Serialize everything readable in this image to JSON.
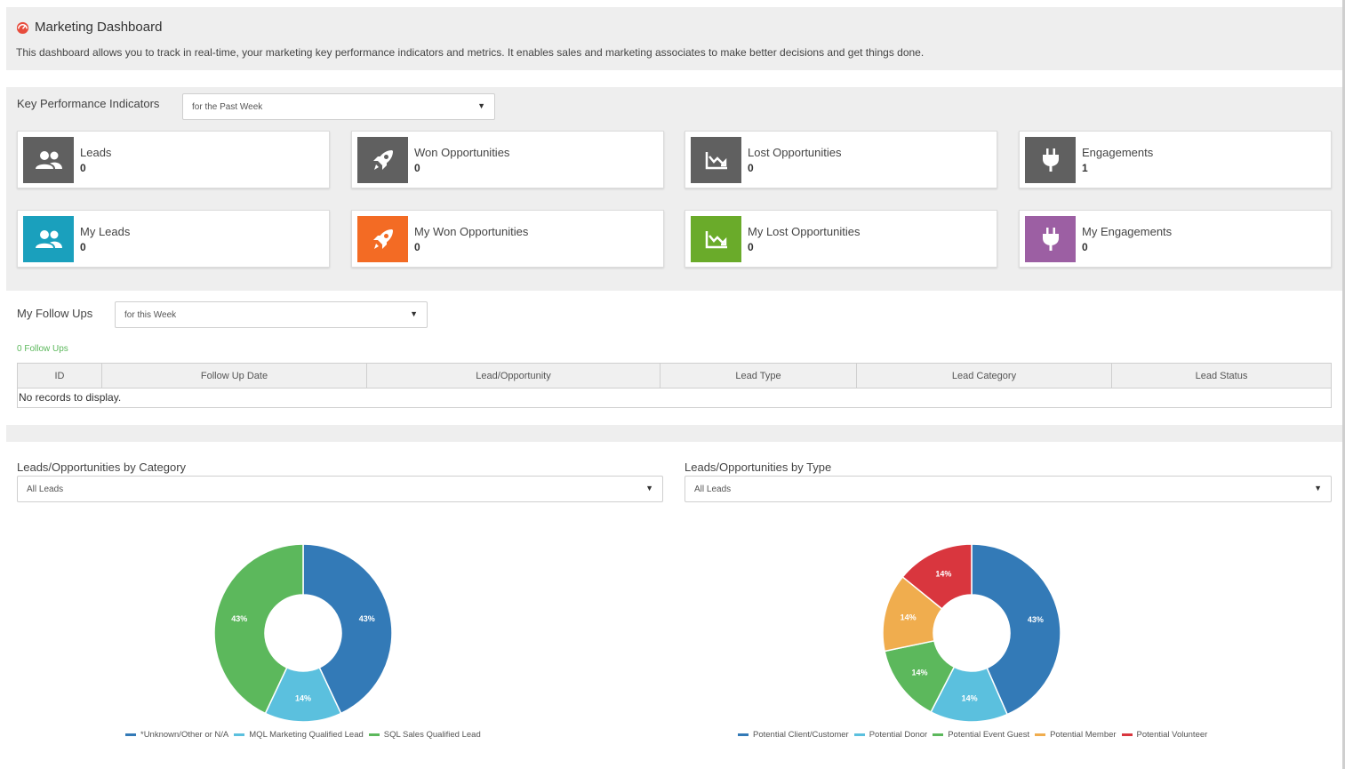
{
  "header": {
    "title": "Marketing Dashboard",
    "description": "This dashboard allows you to track in real-time, your marketing key performance indicators and metrics. It enables sales and marketing associates to make better decisions and get things done."
  },
  "kpi": {
    "label": "Key Performance Indicators",
    "filter": "for the Past Week",
    "cards": [
      {
        "label": "Leads",
        "value": "0",
        "color": "#606060",
        "icon": "users-icon"
      },
      {
        "label": "Won Opportunities",
        "value": "0",
        "color": "#606060",
        "icon": "rocket-icon"
      },
      {
        "label": "Lost Opportunities",
        "value": "0",
        "color": "#606060",
        "icon": "chart-down-icon"
      },
      {
        "label": "Engagements",
        "value": "1",
        "color": "#606060",
        "icon": "plug-icon"
      },
      {
        "label": "My Leads",
        "value": "0",
        "color": "#1aa0bd",
        "icon": "users-icon"
      },
      {
        "label": "My Won Opportunities",
        "value": "0",
        "color": "#f36b24",
        "icon": "rocket-icon"
      },
      {
        "label": "My Lost Opportunities",
        "value": "0",
        "color": "#6aab2a",
        "icon": "chart-down-icon"
      },
      {
        "label": "My Engagements",
        "value": "0",
        "color": "#9c5fa3",
        "icon": "plug-icon"
      }
    ]
  },
  "follow_ups": {
    "label": "My Follow Ups",
    "filter": "for this Week",
    "count_text": "0 Follow Ups",
    "columns": [
      "ID",
      "Follow Up Date",
      "Lead/Opportunity",
      "Lead Type",
      "Lead Category",
      "Lead Status"
    ],
    "empty_text": "No records to display."
  },
  "charts": {
    "category": {
      "title": "Leads/Opportunities by Category",
      "filter": "All Leads"
    },
    "type": {
      "title": "Leads/Opportunities by Type",
      "filter": "All Leads"
    }
  },
  "chart_data": [
    {
      "type": "pie",
      "title": "Leads/Opportunities by Category",
      "labels": [
        "*Unknown/Other or N/A",
        "MQL Marketing Qualified Lead",
        "SQL Sales Qualified Lead"
      ],
      "values": [
        43,
        14,
        43
      ],
      "data_labels": [
        "43%",
        "14%",
        "43%"
      ],
      "colors": [
        "#337ab7",
        "#5bc0de",
        "#5cb85c"
      ],
      "donut": true,
      "legend": "bottom"
    },
    {
      "type": "pie",
      "title": "Leads/Opportunities by Type",
      "labels": [
        "Potential Client/Customer",
        "Potential Donor",
        "Potential Event Guest",
        "Potential Member",
        "Potential Volunteer"
      ],
      "values": [
        43,
        14,
        14,
        14,
        14
      ],
      "data_labels": [
        "43%",
        "14%",
        "14%",
        "14%",
        "14%"
      ],
      "colors": [
        "#337ab7",
        "#5bc0de",
        "#5cb85c",
        "#f0ad4e",
        "#d9363e"
      ],
      "donut": true,
      "legend": "bottom"
    }
  ]
}
